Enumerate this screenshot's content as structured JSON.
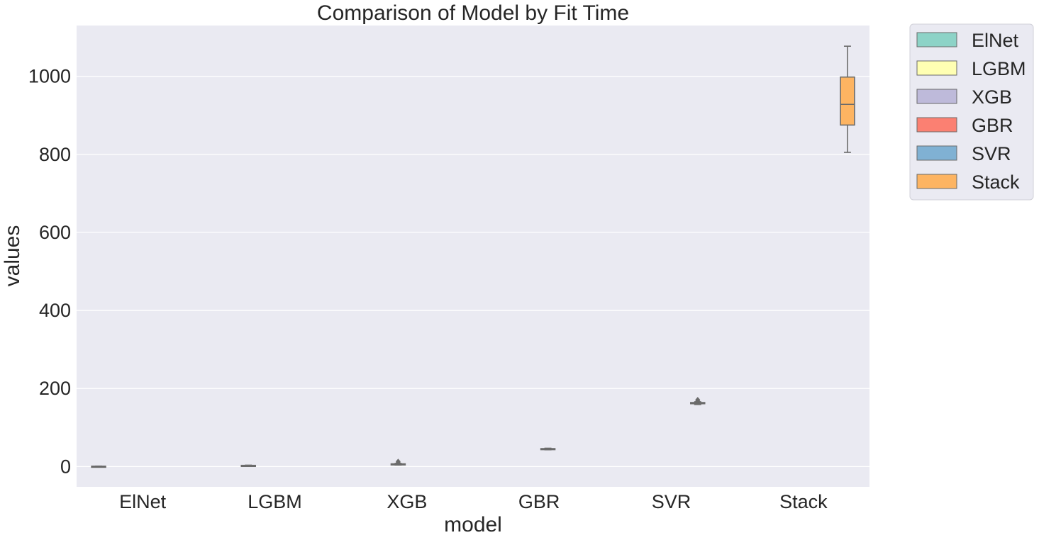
{
  "chart_data": {
    "type": "box",
    "title": "Comparison of Model by Fit Time",
    "xlabel": "model",
    "ylabel": "values",
    "ylim": [
      -52,
      1130
    ],
    "yticks": [
      0,
      200,
      400,
      600,
      800,
      1000
    ],
    "grid": true,
    "legend_position": "outside-right",
    "categories": [
      "ElNet",
      "LGBM",
      "XGB",
      "GBR",
      "SVR",
      "Stack"
    ],
    "series": [
      {
        "name": "ElNet",
        "color": "#8dd3c7",
        "slot": 0,
        "stats": {
          "whislo": 0.3,
          "q1": 0.5,
          "median": 0.7,
          "q3": 0.9,
          "whishi": 1.2
        },
        "fliers": []
      },
      {
        "name": "LGBM",
        "color": "#ffffb3",
        "slot": 1,
        "stats": {
          "whislo": 1.5,
          "q1": 2.0,
          "median": 2.5,
          "q3": 3.0,
          "whishi": 3.5
        },
        "fliers": []
      },
      {
        "name": "XGB",
        "color": "#bebada",
        "slot": 2,
        "stats": {
          "whislo": 4.0,
          "q1": 5.0,
          "median": 6.0,
          "q3": 7.0,
          "whishi": 8.0
        },
        "fliers": [
          10.0,
          13.0
        ]
      },
      {
        "name": "GBR",
        "color": "#fb8072",
        "slot": 3,
        "stats": {
          "whislo": 43.0,
          "q1": 44.0,
          "median": 45.0,
          "q3": 46.0,
          "whishi": 47.0
        },
        "fliers": []
      },
      {
        "name": "SVR",
        "color": "#80b1d3",
        "slot": 4,
        "stats": {
          "whislo": 159.0,
          "q1": 161.0,
          "median": 162.0,
          "q3": 164.0,
          "whishi": 166.0
        },
        "fliers": [
          168.0,
          171.0
        ]
      },
      {
        "name": "Stack",
        "color": "#fdb462",
        "slot": 5,
        "stats": {
          "whislo": 805.0,
          "q1": 875.0,
          "median": 928.0,
          "q3": 998.0,
          "whishi": 1077.0
        },
        "fliers": []
      }
    ]
  }
}
